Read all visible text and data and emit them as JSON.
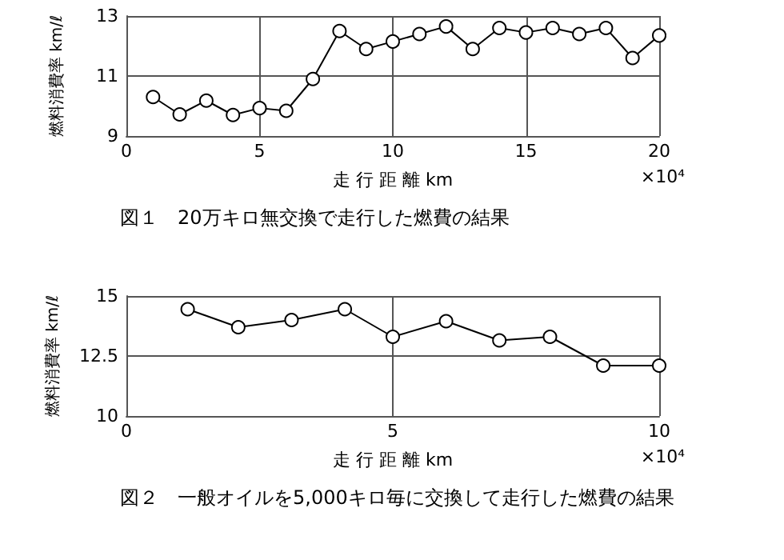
{
  "chart_data": [
    {
      "type": "line",
      "title": "図１　20万キロ無交換で走行した燃費の結果",
      "xlabel": "走 行 距 離 km",
      "ylabel": "燃料消費率 km/ℓ",
      "annotations": [
        "×10⁴"
      ],
      "x": [
        1,
        2,
        3,
        4,
        5,
        6,
        7,
        8,
        9,
        10,
        11,
        12,
        13,
        14,
        15,
        16,
        17,
        18,
        19,
        20
      ],
      "series": [
        {
          "color": "#000000",
          "values": [
            10.3,
            9.72,
            10.18,
            9.7,
            9.93,
            9.84,
            10.9,
            12.5,
            11.9,
            12.15,
            12.4,
            12.65,
            11.9,
            12.6,
            12.45,
            12.6,
            12.4,
            12.6,
            11.6,
            12.35
          ]
        }
      ],
      "xlim": [
        0,
        20
      ],
      "xticks": [
        0,
        5,
        10,
        15,
        20
      ],
      "ylim": [
        9,
        13
      ],
      "yticks": [
        9,
        11,
        13
      ],
      "grid": true,
      "marker": "circle",
      "line_style": "solid"
    },
    {
      "type": "line",
      "title": "図２　一般オイルを5,000キロ毎に交換して走行した燃費の結果",
      "xlabel": "走 行 距 離 km",
      "ylabel": "燃料消費率 km/ℓ",
      "annotations": [
        "×10⁴"
      ],
      "x": [
        1.15,
        2.1,
        3.1,
        4.1,
        5.0,
        6.0,
        7.0,
        7.95,
        8.95,
        10
      ],
      "series": [
        {
          "color": "#000000",
          "values": [
            14.45,
            13.7,
            14.0,
            14.45,
            13.3,
            13.95,
            13.15,
            13.3,
            12.1,
            12.1
          ]
        }
      ],
      "xlim": [
        0,
        10
      ],
      "xticks": [
        0,
        5,
        10
      ],
      "ylim": [
        10,
        15
      ],
      "yticks": [
        10,
        12.5,
        15
      ],
      "grid": true,
      "marker": "circle",
      "line_style": "solid"
    }
  ]
}
